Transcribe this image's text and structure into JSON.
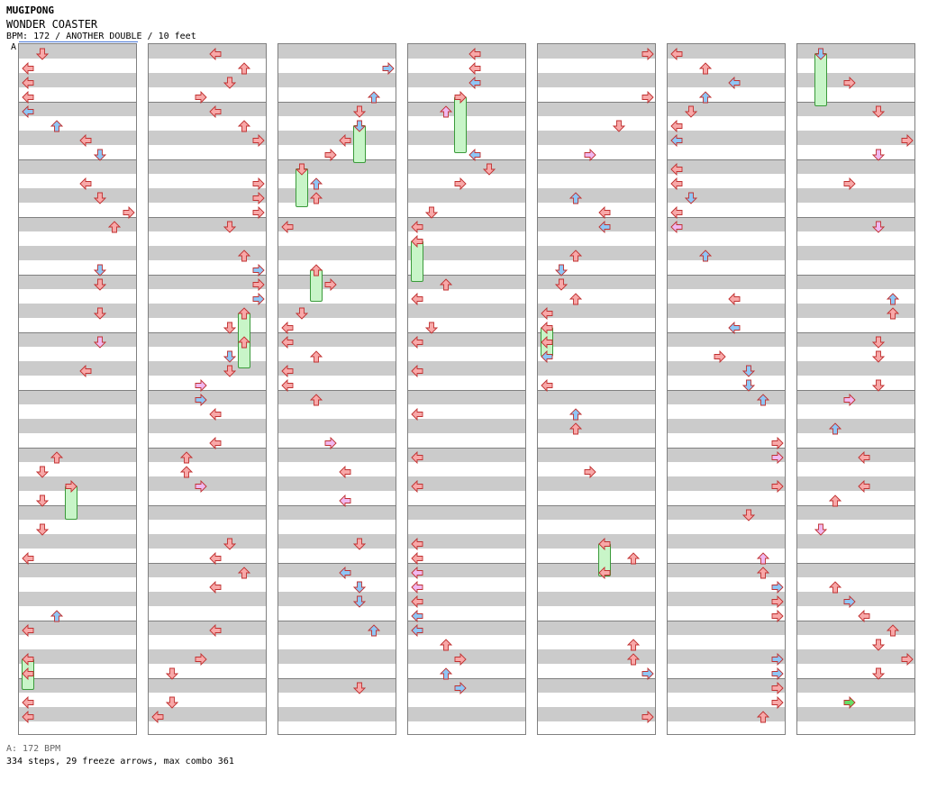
{
  "header": {
    "site": "MUGIPONG",
    "song": "WONDER COASTER",
    "info": "BPM: 172 / ANOTHER DOUBLE / 10 feet",
    "bpm_marker_label": "A"
  },
  "footer": {
    "bpm_legend": "A: 172 BPM",
    "stats": "334 steps, 29 freeze arrows, max combo 361"
  },
  "colors": {
    "band": "#cbcbcb",
    "red_arrow": "#f8a8a8",
    "blue_arrow": "#8ec6f5",
    "pink_arrow": "#f0b8f0",
    "green_arrow": "#66dd66",
    "freeze": "#c8f5c8"
  },
  "chart_columns": 7,
  "icons": [
    "arrow-left-icon",
    "arrow-down-icon",
    "arrow-up-icon",
    "arrow-right-icon"
  ]
}
